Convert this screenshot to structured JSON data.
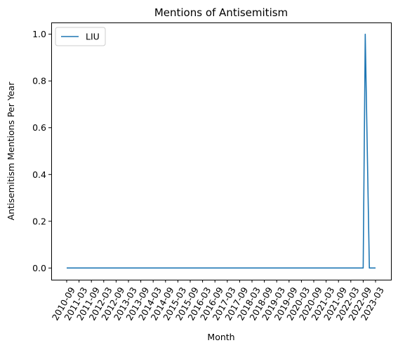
{
  "chart_data": {
    "type": "line",
    "title": "Mentions of Antisemitism",
    "xlabel": "Month",
    "ylabel": "Antisemitism Mentions Per Year",
    "ylim": [
      -0.05,
      1.05
    ],
    "yticks": [
      0.0,
      0.2,
      0.4,
      0.6,
      0.8,
      1.0
    ],
    "ytick_labels": [
      "0.0",
      "0.2",
      "0.4",
      "0.6",
      "0.8",
      "1.0"
    ],
    "xtick_labels": [
      "2010-09",
      "2011-03",
      "2011-09",
      "2012-03",
      "2012-09",
      "2013-03",
      "2013-09",
      "2014-03",
      "2014-09",
      "2015-03",
      "2015-09",
      "2016-03",
      "2016-09",
      "2017-03",
      "2017-09",
      "2018-03",
      "2018-09",
      "2019-03",
      "2019-09",
      "2020-03",
      "2020-09",
      "2021-03",
      "2021-09",
      "2022-03",
      "2022-09",
      "2023-03"
    ],
    "x": [
      "2010-09",
      "2011-03",
      "2011-09",
      "2012-03",
      "2012-09",
      "2013-03",
      "2013-09",
      "2014-03",
      "2014-09",
      "2015-03",
      "2015-09",
      "2016-03",
      "2016-09",
      "2017-03",
      "2017-09",
      "2018-03",
      "2018-09",
      "2019-03",
      "2019-09",
      "2020-03",
      "2020-09",
      "2021-03",
      "2021-09",
      "2022-03",
      "2022-09",
      "2022-10",
      "2022-12",
      "2023-03"
    ],
    "series": [
      {
        "name": "LIU",
        "color": "#1f77b4",
        "values": [
          0,
          0,
          0,
          0,
          0,
          0,
          0,
          0,
          0,
          0,
          0,
          0,
          0,
          0,
          0,
          0,
          0,
          0,
          0,
          0,
          0,
          0,
          0,
          0,
          0,
          1,
          0,
          0
        ]
      }
    ],
    "grid": false,
    "legend_position": "top-left"
  }
}
